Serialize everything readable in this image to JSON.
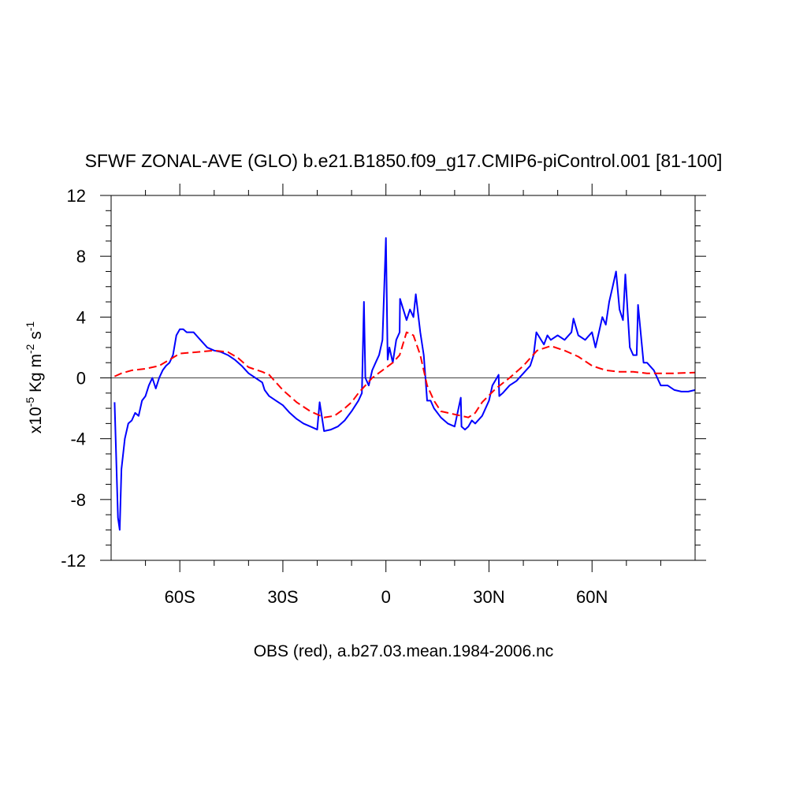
{
  "chart_data": {
    "type": "line",
    "title": "SFWF ZONAL-AVE (GLO) b.e21.B1850.f09_g17.CMIP6-piControl.001 [81-100]",
    "x_label": "OBS (red), a.b27.03.mean.1984-2006.nc",
    "y_label": [
      "x10",
      "-5",
      " Kg m",
      "-2",
      " s",
      "-1"
    ],
    "xlim": [
      -80,
      90
    ],
    "ylim": [
      -12,
      12
    ],
    "xticks": [
      {
        "value": -60,
        "label": "60S"
      },
      {
        "value": -30,
        "label": "30S"
      },
      0,
      {
        "value": 30,
        "label": "30N"
      },
      {
        "value": 60,
        "label": "60N"
      }
    ],
    "yticks": [
      -12,
      -8,
      -4,
      0,
      4,
      8,
      12
    ],
    "xminorticks": [
      -70,
      -50,
      -40,
      -20,
      -10,
      10,
      20,
      40,
      50,
      70,
      80
    ],
    "yminorticks": [
      -11,
      -10,
      -9,
      -7,
      -6,
      -5,
      -3,
      -2,
      -1,
      1,
      2,
      3,
      5,
      6,
      7,
      9,
      10,
      11
    ],
    "zero_line": 0,
    "series": [
      {
        "color": "#0000ff",
        "dash": false,
        "x": [
          -79,
          -78,
          -77.5,
          -77,
          -76,
          -75,
          -74,
          -73,
          -72,
          -71,
          -70,
          -69,
          -68,
          -67,
          -66,
          -65,
          -64,
          -63,
          -62,
          -61,
          -60,
          -59,
          -58,
          -56,
          -54,
          -52,
          -50,
          -48,
          -46,
          -44,
          -42,
          -40,
          -38,
          -36,
          -35.3,
          -34,
          -32,
          -30,
          -28,
          -26,
          -24,
          -22,
          -20,
          -19.3,
          -18,
          -16,
          -14,
          -12,
          -10,
          -8,
          -7,
          -6.4,
          -6,
          -5,
          -4,
          -3,
          -2,
          -1,
          0,
          0.5,
          1,
          2,
          3,
          4,
          4.1,
          6,
          7,
          8,
          8.7,
          10,
          11,
          12,
          13,
          14,
          16,
          18,
          20,
          21.8,
          22,
          23,
          24,
          25,
          26,
          28,
          30,
          31,
          32.8,
          33,
          34,
          36,
          38,
          40,
          42,
          43,
          43.8,
          46,
          47,
          48,
          50,
          52,
          54,
          54.6,
          56,
          58,
          60,
          61,
          62,
          63,
          64,
          65,
          66,
          67,
          68,
          69,
          69.7,
          71,
          72,
          73,
          73.4,
          75,
          76,
          78,
          80,
          82,
          84,
          86,
          88,
          90
        ],
        "values": [
          -1.6,
          -9.2,
          -10,
          -6,
          -4,
          -3,
          -2.8,
          -2.3,
          -2.5,
          -1.5,
          -1.2,
          -0.5,
          0,
          -0.7,
          0,
          0.5,
          0.8,
          1.0,
          1.5,
          2.8,
          3.2,
          3.2,
          3.0,
          3.0,
          2.5,
          2.0,
          1.8,
          1.7,
          1.5,
          1.2,
          0.8,
          0.3,
          0,
          -0.3,
          -0.8,
          -1.2,
          -1.5,
          -1.8,
          -2.3,
          -2.7,
          -3.0,
          -3.2,
          -3.4,
          -1.6,
          -3.5,
          -3.4,
          -3.2,
          -2.8,
          -2.2,
          -1.5,
          -1.0,
          5.0,
          0,
          -0.5,
          0.5,
          1.0,
          1.5,
          2.5,
          9.2,
          1.2,
          2.0,
          1.0,
          2.5,
          3.0,
          5.2,
          3.8,
          4.5,
          4.0,
          5.5,
          3.0,
          1.5,
          -1.5,
          -1.5,
          -2.0,
          -2.6,
          -3.0,
          -3.2,
          -1.3,
          -3.2,
          -3.4,
          -3.2,
          -2.8,
          -3.0,
          -2.5,
          -1.5,
          -0.5,
          0.2,
          -1.2,
          -1.0,
          -0.5,
          -0.2,
          0.3,
          0.8,
          1.5,
          3.0,
          2.2,
          2.8,
          2.5,
          2.8,
          2.5,
          3.0,
          3.9,
          2.8,
          2.5,
          3.0,
          2.0,
          3.0,
          4.0,
          3.5,
          5.0,
          6.0,
          7.0,
          4.5,
          3.8,
          6.8,
          2.0,
          1.5,
          1.5,
          4.8,
          1.0,
          1.0,
          0.5,
          -0.5,
          -0.5,
          -0.8,
          -0.9,
          -0.9,
          -0.8
        ]
      },
      {
        "color": "#ff0000",
        "dash": true,
        "x": [
          -79,
          -77,
          -74,
          -70,
          -66,
          -63,
          -60,
          -55,
          -50,
          -46,
          -43,
          -40,
          -36,
          -34,
          -32,
          -30,
          -26,
          -22,
          -18,
          -15,
          -12,
          -10,
          -8,
          -4,
          -1,
          2,
          4,
          6,
          8,
          10,
          12,
          14,
          16,
          20,
          24,
          26,
          28,
          32,
          36,
          40,
          44,
          48,
          52,
          56,
          60,
          64,
          68,
          72,
          76,
          80,
          84,
          90
        ],
        "values": [
          0.1,
          0.3,
          0.5,
          0.6,
          0.8,
          1.2,
          1.6,
          1.7,
          1.8,
          1.7,
          1.3,
          0.7,
          0.4,
          0.2,
          -0.3,
          -0.8,
          -1.6,
          -2.2,
          -2.6,
          -2.5,
          -2.0,
          -1.6,
          -1.0,
          0,
          0.5,
          1.0,
          1.5,
          3.0,
          2.8,
          1.5,
          -0.5,
          -1.5,
          -2.2,
          -2.4,
          -2.6,
          -2.3,
          -1.6,
          -0.7,
          0,
          0.8,
          1.8,
          2.1,
          1.8,
          1.4,
          0.8,
          0.5,
          0.4,
          0.4,
          0.3,
          0.3,
          0.3,
          0.35
        ]
      }
    ]
  }
}
